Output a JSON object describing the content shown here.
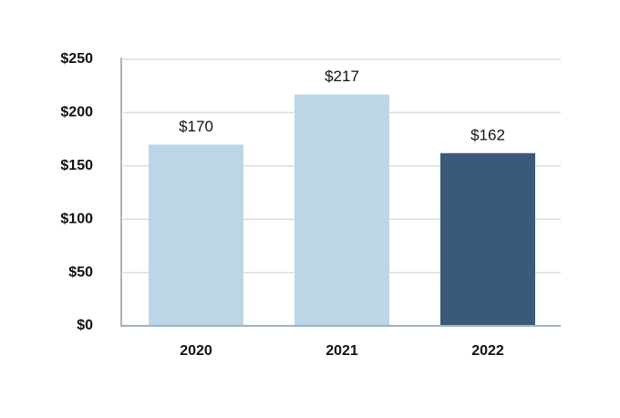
{
  "chart_data": {
    "type": "bar",
    "categories": [
      "2020",
      "2021",
      "2022"
    ],
    "values": [
      170,
      217,
      162
    ],
    "value_labels": [
      "$170",
      "$217",
      "$162"
    ],
    "colors": [
      "#bcd6e8",
      "#bcd6e8",
      "#3a5a7a"
    ],
    "ylim": [
      0,
      250
    ],
    "yticks": [
      {
        "value": 0,
        "label": "$0"
      },
      {
        "value": 50,
        "label": "$50"
      },
      {
        "value": 100,
        "label": "$100"
      },
      {
        "value": 150,
        "label": "$150"
      },
      {
        "value": 200,
        "label": "$200"
      },
      {
        "value": 250,
        "label": "$250"
      }
    ],
    "grid": true
  }
}
